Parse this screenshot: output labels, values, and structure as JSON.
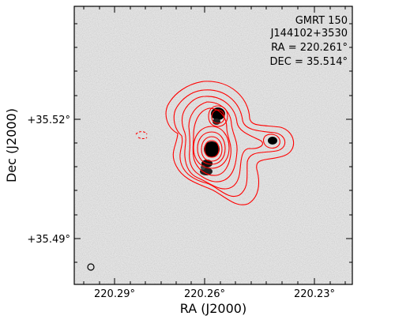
{
  "info": {
    "line1": "GMRT 150",
    "line2": "J144102+3530",
    "line3": "RA = 220.261°",
    "line4": "DEC = 35.514°"
  },
  "axes": {
    "xlabel": "RA (J2000)",
    "ylabel": "Dec (J2000)",
    "xticks": [
      "220.29°",
      "220.26°",
      "220.23°"
    ],
    "yticks": [
      "+35.52°",
      "+35.49°"
    ]
  },
  "colors": {
    "contour": "#ff0000",
    "background": "#e6e6e6",
    "source": "#000000"
  }
}
